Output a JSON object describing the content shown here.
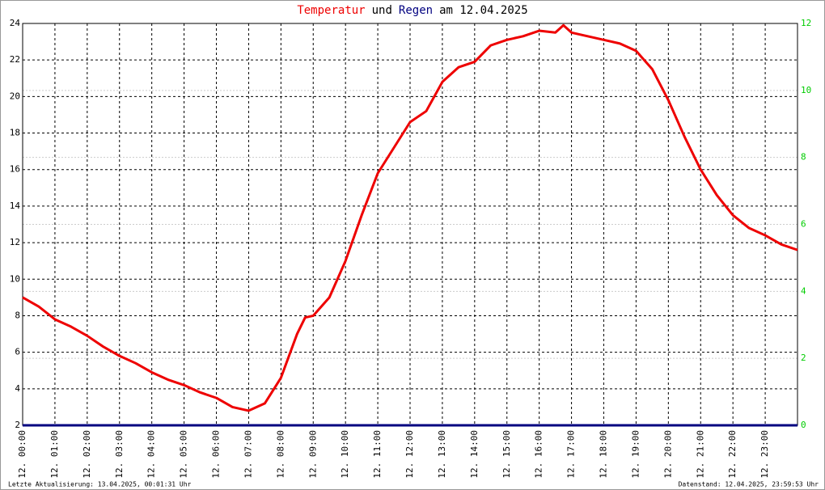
{
  "chart_data": {
    "type": "line",
    "title": [
      "Temperatur",
      "und",
      "Regen",
      "am 12.04.2025"
    ],
    "x": [
      0,
      0.5,
      1,
      1.5,
      2,
      2.5,
      3,
      3.5,
      4,
      4.5,
      5,
      5.5,
      6,
      6.5,
      7,
      7.5,
      8,
      8.5,
      8.75,
      9,
      9.5,
      10,
      10.5,
      11,
      11.5,
      12,
      12.5,
      13,
      13.5,
      14,
      14.5,
      15,
      15.5,
      16,
      16.5,
      16.75,
      17,
      17.5,
      18,
      18.5,
      19,
      19.5,
      20,
      20.5,
      21,
      21.5,
      22,
      22.5,
      23,
      23.5,
      24
    ],
    "series": [
      {
        "name": "Temperatur",
        "color": "#ee0000",
        "values": [
          9.0,
          8.5,
          7.8,
          7.4,
          6.9,
          6.3,
          5.8,
          5.4,
          4.9,
          4.5,
          4.2,
          3.8,
          3.5,
          3.0,
          2.8,
          3.2,
          4.6,
          7.0,
          7.9,
          8.0,
          9.0,
          11.0,
          13.5,
          15.8,
          17.2,
          18.6,
          19.2,
          20.8,
          21.6,
          21.9,
          22.8,
          23.1,
          23.3,
          23.6,
          23.5,
          23.9,
          23.5,
          23.3,
          23.1,
          22.9,
          22.5,
          21.5,
          19.8,
          17.8,
          16.0,
          14.6,
          13.5,
          12.8,
          12.4,
          11.9,
          11.6
        ]
      },
      {
        "name": "Regen",
        "color": "#000080",
        "axis": "y2",
        "values": [
          0,
          0,
          0,
          0,
          0,
          0,
          0,
          0,
          0,
          0,
          0,
          0,
          0,
          0,
          0,
          0,
          0,
          0,
          0,
          0,
          0,
          0,
          0,
          0,
          0,
          0,
          0,
          0,
          0,
          0,
          0,
          0,
          0,
          0,
          0,
          0,
          0,
          0,
          0,
          0,
          0,
          0,
          0,
          0,
          0,
          0,
          0,
          0,
          0,
          0,
          0
        ]
      }
    ],
    "xlim": [
      0,
      24
    ],
    "xticks": [
      {
        "value": 0,
        "label": "12. 00:00"
      },
      {
        "value": 1,
        "label": "12. 01:00"
      },
      {
        "value": 2,
        "label": "12. 02:00"
      },
      {
        "value": 3,
        "label": "12. 03:00"
      },
      {
        "value": 4,
        "label": "12. 04:00"
      },
      {
        "value": 5,
        "label": "12. 05:00"
      },
      {
        "value": 6,
        "label": "12. 06:00"
      },
      {
        "value": 7,
        "label": "12. 07:00"
      },
      {
        "value": 8,
        "label": "12. 08:00"
      },
      {
        "value": 9,
        "label": "12. 09:00"
      },
      {
        "value": 10,
        "label": "12. 10:00"
      },
      {
        "value": 11,
        "label": "12. 11:00"
      },
      {
        "value": 12,
        "label": "12. 12:00"
      },
      {
        "value": 13,
        "label": "12. 13:00"
      },
      {
        "value": 14,
        "label": "12. 14:00"
      },
      {
        "value": 15,
        "label": "12. 15:00"
      },
      {
        "value": 16,
        "label": "12. 16:00"
      },
      {
        "value": 17,
        "label": "12. 17:00"
      },
      {
        "value": 18,
        "label": "12. 18:00"
      },
      {
        "value": 19,
        "label": "12. 19:00"
      },
      {
        "value": 20,
        "label": "12. 20:00"
      },
      {
        "value": 21,
        "label": "12. 21:00"
      },
      {
        "value": 22,
        "label": "12. 22:00"
      },
      {
        "value": 23,
        "label": "12. 23:00"
      }
    ],
    "ylim": [
      2,
      24
    ],
    "yticks": [
      2,
      4,
      6,
      8,
      10,
      12,
      14,
      16,
      18,
      20,
      22,
      24
    ],
    "y2lim": [
      0,
      12
    ],
    "y2ticks": [
      0,
      2,
      4,
      6,
      8,
      10,
      12
    ],
    "y2color": "#00cc00",
    "grid": true
  },
  "footer": {
    "left": "Letzte Aktualisierung: 13.04.2025, 00:01:31 Uhr",
    "right": "Datenstand: 12.04.2025, 23:59:53 Uhr"
  }
}
